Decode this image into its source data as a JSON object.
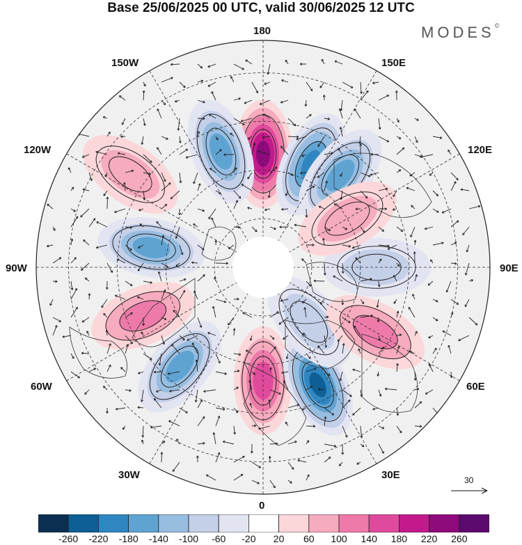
{
  "title": "Base 25/06/2025 00 UTC, valid 30/06/2025 12 UTC",
  "brand": "MODES",
  "brand_mark": "©",
  "longitude_labels": {
    "top": "180",
    "bottom": "0",
    "left": "90W",
    "right": "90E",
    "upper_left_1": "150W",
    "upper_left_2": "120W",
    "upper_right_1": "150E",
    "upper_right_2": "120E",
    "lower_left_1": "60W",
    "lower_left_2": "30W",
    "lower_right_1": "60E",
    "lower_right_2": "30E"
  },
  "wind_scale": {
    "label": "30"
  },
  "colorbar": {
    "ticks": [
      "-260",
      "-220",
      "-180",
      "-140",
      "-100",
      "-60",
      "-20",
      "20",
      "60",
      "100",
      "140",
      "180",
      "220",
      "260"
    ],
    "colors": [
      "#0b2f52",
      "#0d5f96",
      "#2f86c1",
      "#5fa3d2",
      "#97bde1",
      "#c4cfe8",
      "#e3e4f2",
      "#ffffff",
      "#fbd7d9",
      "#f6abbe",
      "#ee7aa9",
      "#e04a9d",
      "#c21a8c",
      "#8e0a7d",
      "#5c0a6e"
    ]
  },
  "map": {
    "projection": "north-polar-stereographic",
    "background": "#f0f0f0",
    "anomaly_centers": [
      {
        "lon": 180,
        "lat": 55,
        "value": 240
      },
      {
        "lon": 155,
        "lat": 55,
        "value": -180
      },
      {
        "lon": -160,
        "lat": 52,
        "value": -140
      },
      {
        "lon": 140,
        "lat": 53,
        "value": -160
      },
      {
        "lon": -100,
        "lat": 55,
        "value": -160
      },
      {
        "lon": -125,
        "lat": 40,
        "value": 60
      },
      {
        "lon": -68,
        "lat": 50,
        "value": 100
      },
      {
        "lon": -40,
        "lat": 50,
        "value": -160
      },
      {
        "lon": 0,
        "lat": 55,
        "value": 140
      },
      {
        "lon": 25,
        "lat": 50,
        "value": -220
      },
      {
        "lon": 40,
        "lat": 68,
        "value": -60
      },
      {
        "lon": 60,
        "lat": 50,
        "value": 100
      },
      {
        "lon": 90,
        "lat": 55,
        "value": -60
      },
      {
        "lon": 120,
        "lat": 60,
        "value": 60
      }
    ]
  }
}
